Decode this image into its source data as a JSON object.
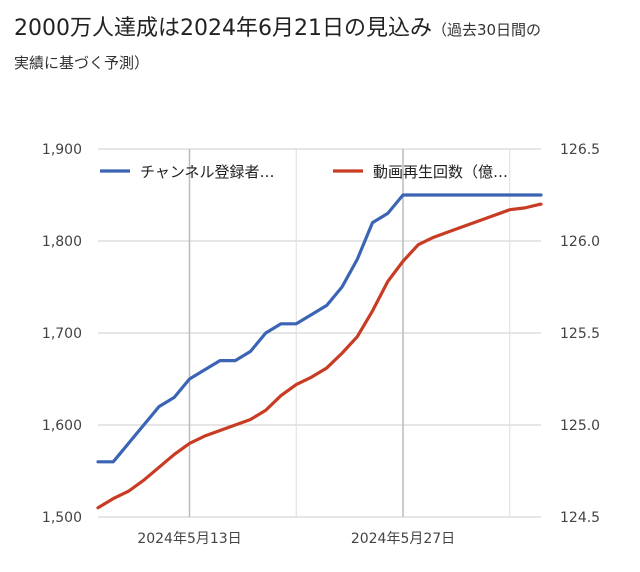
{
  "title": {
    "main": "2000万人達成は2024年6月21日の見込み",
    "sub_part1": "（過去30日間の",
    "sub_part2": "実績に基づく予測）"
  },
  "colors": {
    "subscribers": "#3c64b4",
    "views": "#c83c23",
    "grid": "#cccccc"
  },
  "chart_data": {
    "type": "line",
    "title": "2000万人達成は2024年6月21日の見込み（過去30日間の実績に基づく予測）",
    "x": [
      "2024-05-07",
      "2024-05-08",
      "2024-05-09",
      "2024-05-10",
      "2024-05-11",
      "2024-05-12",
      "2024-05-13",
      "2024-05-14",
      "2024-05-15",
      "2024-05-16",
      "2024-05-17",
      "2024-05-18",
      "2024-05-19",
      "2024-05-20",
      "2024-05-21",
      "2024-05-22",
      "2024-05-23",
      "2024-05-24",
      "2024-05-25",
      "2024-05-26",
      "2024-05-27",
      "2024-05-28",
      "2024-05-29",
      "2024-05-30",
      "2024-05-31",
      "2024-06-01",
      "2024-06-02",
      "2024-06-03",
      "2024-06-04",
      "2024-06-05"
    ],
    "x_ticks": [
      {
        "date": "2024-05-13",
        "label": "2024年5月13日"
      },
      {
        "date": "2024-05-27",
        "label": "2024年5月27日"
      }
    ],
    "y_left": {
      "min": 1500,
      "max": 1900,
      "ticks": [
        "1,500",
        "1,600",
        "1,700",
        "1,800",
        "1,900"
      ]
    },
    "y_right": {
      "min": 124.5,
      "max": 126.5,
      "ticks": [
        "124.5",
        "125.0",
        "125.5",
        "126.0",
        "126.5"
      ]
    },
    "legend_position": "top",
    "series": [
      {
        "name": "チャンネル登録者…",
        "axis": "left",
        "values": [
          1560,
          1560,
          1580,
          1600,
          1620,
          1630,
          1650,
          1660,
          1670,
          1670,
          1680,
          1700,
          1710,
          1710,
          1720,
          1730,
          1750,
          1780,
          1820,
          1830,
          1850,
          1850,
          1850,
          1850,
          1850,
          1850,
          1850,
          1850,
          1850,
          1850
        ]
      },
      {
        "name": "動画再生回数（億…",
        "axis": "right",
        "values": [
          124.55,
          124.6,
          124.64,
          124.7,
          124.77,
          124.84,
          124.9,
          124.94,
          124.97,
          125.0,
          125.03,
          125.08,
          125.16,
          125.22,
          125.26,
          125.31,
          125.39,
          125.48,
          125.62,
          125.78,
          125.89,
          125.98,
          126.02,
          126.05,
          126.08,
          126.11,
          126.14,
          126.17,
          126.18,
          126.2
        ]
      }
    ],
    "gridlines": true
  }
}
